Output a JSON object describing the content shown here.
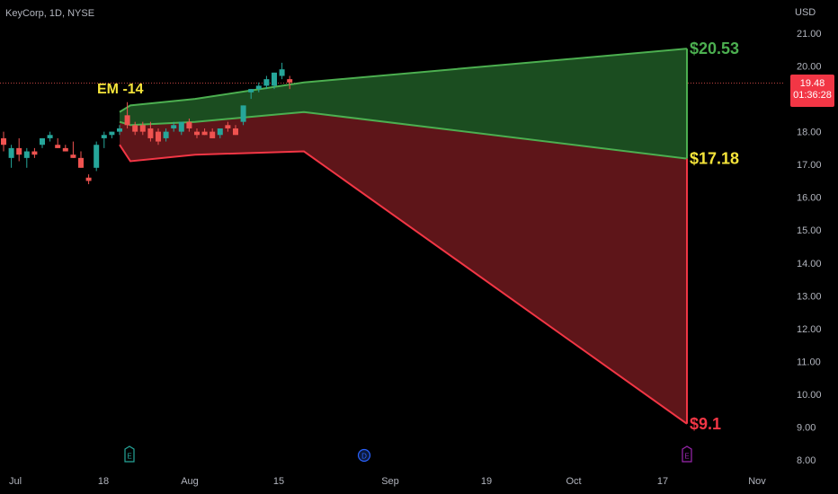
{
  "header": {
    "symbol_line": "KeyCorp, 1D, NYSE",
    "currency": "USD"
  },
  "last_price": {
    "price": "19.48",
    "countdown": "01:36:28"
  },
  "colors": {
    "up": "#26a69a",
    "down": "#ef5350",
    "upper_band": "#4caf50",
    "upper_fill": "#1b4d20",
    "lower_band": "#f23645",
    "lower_fill": "#5e1519",
    "label_yellow": "#f5e43a",
    "label_green": "#4caf50",
    "label_red": "#f23645"
  },
  "chart_data": {
    "type": "candlestick",
    "title": "",
    "ylim": [
      7.8,
      22.3
    ],
    "y_ticks": [
      "8.00",
      "9.00",
      "10.00",
      "11.00",
      "12.00",
      "13.00",
      "14.00",
      "15.00",
      "16.00",
      "17.00",
      "18.00",
      "19.00",
      "20.00",
      "21.00"
    ],
    "x_ticks": [
      "Jul",
      "18",
      "Aug",
      "15",
      "Sep",
      "19",
      "Oct",
      "17",
      "Nov"
    ],
    "annotations": [
      {
        "text": "EM -14",
        "color": "label_yellow"
      },
      {
        "text": "$20.53",
        "y": 20.53,
        "color": "label_green"
      },
      {
        "text": "$17.18",
        "y": 17.18,
        "color": "label_yellow"
      },
      {
        "text": "$9.1",
        "y": 9.1,
        "color": "label_red"
      }
    ],
    "event_markers": [
      {
        "letter": "E",
        "label": "earnings",
        "color": "#26a69a"
      },
      {
        "letter": "D",
        "label": "dividend",
        "color": "#2962ff"
      },
      {
        "letter": "E",
        "label": "earnings",
        "color": "#9c27b0"
      }
    ],
    "candles": [
      {
        "o": 17.8,
        "h": 18.0,
        "l": 17.4,
        "c": 17.6
      },
      {
        "o": 17.2,
        "h": 17.6,
        "l": 16.9,
        "c": 17.5
      },
      {
        "o": 17.5,
        "h": 17.8,
        "l": 17.1,
        "c": 17.3
      },
      {
        "o": 17.2,
        "h": 17.5,
        "l": 16.9,
        "c": 17.4
      },
      {
        "o": 17.4,
        "h": 17.5,
        "l": 17.2,
        "c": 17.3
      },
      {
        "o": 17.6,
        "h": 17.8,
        "l": 17.5,
        "c": 17.8
      },
      {
        "o": 17.8,
        "h": 18.0,
        "l": 17.7,
        "c": 17.9
      },
      {
        "o": 17.6,
        "h": 17.8,
        "l": 17.5,
        "c": 17.5
      },
      {
        "o": 17.5,
        "h": 17.6,
        "l": 17.4,
        "c": 17.4
      },
      {
        "o": 17.3,
        "h": 17.7,
        "l": 17.2,
        "c": 17.2
      },
      {
        "o": 17.2,
        "h": 17.4,
        "l": 16.9,
        "c": 16.9
      },
      {
        "o": 16.6,
        "h": 16.7,
        "l": 16.4,
        "c": 16.5
      },
      {
        "o": 16.9,
        "h": 17.7,
        "l": 16.8,
        "c": 17.6
      },
      {
        "o": 17.8,
        "h": 18.0,
        "l": 17.5,
        "c": 17.9
      },
      {
        "o": 17.9,
        "h": 18.0,
        "l": 17.8,
        "c": 18.0
      },
      {
        "o": 18.0,
        "h": 18.2,
        "l": 17.9,
        "c": 18.1
      },
      {
        "o": 18.5,
        "h": 18.9,
        "l": 18.1,
        "c": 18.2
      },
      {
        "o": 18.2,
        "h": 18.3,
        "l": 17.9,
        "c": 18.0
      },
      {
        "o": 18.2,
        "h": 18.3,
        "l": 17.9,
        "c": 18.0
      },
      {
        "o": 18.1,
        "h": 18.3,
        "l": 17.7,
        "c": 17.8
      },
      {
        "o": 18.0,
        "h": 18.1,
        "l": 17.6,
        "c": 17.7
      },
      {
        "o": 17.8,
        "h": 18.1,
        "l": 17.7,
        "c": 18.0
      },
      {
        "o": 18.1,
        "h": 18.3,
        "l": 18.0,
        "c": 18.2
      },
      {
        "o": 18.0,
        "h": 18.3,
        "l": 17.9,
        "c": 18.3
      },
      {
        "o": 18.3,
        "h": 18.4,
        "l": 18.0,
        "c": 18.1
      },
      {
        "o": 18.0,
        "h": 18.1,
        "l": 17.8,
        "c": 17.9
      },
      {
        "o": 18.0,
        "h": 18.1,
        "l": 17.9,
        "c": 17.9
      },
      {
        "o": 18.0,
        "h": 18.1,
        "l": 17.8,
        "c": 17.8
      },
      {
        "o": 17.9,
        "h": 18.1,
        "l": 17.8,
        "c": 18.1
      },
      {
        "o": 18.2,
        "h": 18.3,
        "l": 18.0,
        "c": 18.1
      },
      {
        "o": 18.1,
        "h": 18.2,
        "l": 17.9,
        "c": 17.9
      },
      {
        "o": 18.3,
        "h": 18.8,
        "l": 18.2,
        "c": 18.8
      },
      {
        "o": 19.2,
        "h": 19.3,
        "l": 19.0,
        "c": 19.3
      },
      {
        "o": 19.3,
        "h": 19.5,
        "l": 19.2,
        "c": 19.4
      },
      {
        "o": 19.4,
        "h": 19.7,
        "l": 19.3,
        "c": 19.6
      },
      {
        "o": 19.4,
        "h": 19.8,
        "l": 19.3,
        "c": 19.8
      },
      {
        "o": 19.7,
        "h": 20.1,
        "l": 19.6,
        "c": 19.9
      },
      {
        "o": 19.6,
        "h": 19.7,
        "l": 19.3,
        "c": 19.5
      }
    ],
    "expected_move": {
      "upper": [
        18.6,
        18.8,
        19.0,
        19.5,
        20.53
      ],
      "middle": [
        18.3,
        18.2,
        18.3,
        18.6,
        17.18
      ],
      "lower": [
        17.6,
        17.1,
        17.3,
        17.4,
        9.1
      ]
    }
  }
}
